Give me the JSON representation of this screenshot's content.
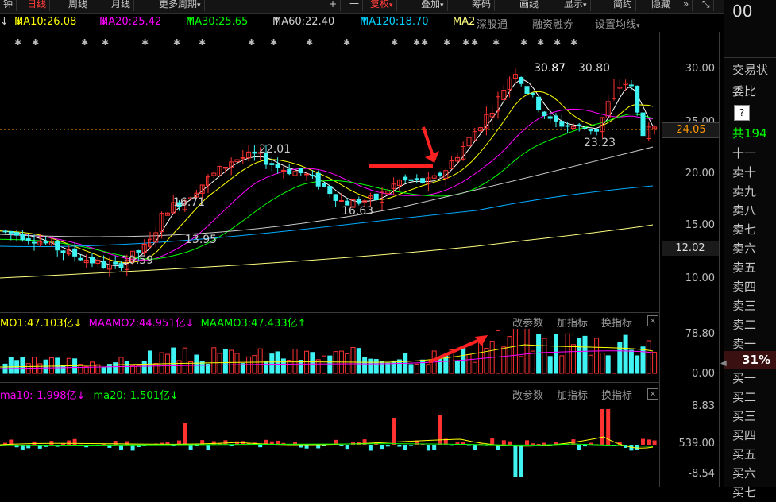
{
  "tabs": [
    {
      "label": "钟",
      "active": false
    },
    {
      "label": "日线",
      "active": true
    },
    {
      "label": "周线",
      "active": false
    },
    {
      "label": "月线",
      "active": false
    },
    {
      "label": "更多周期",
      "active": false,
      "dropdown": true
    }
  ],
  "toolbar": {
    "plus": "+",
    "minus": "一",
    "fuquan": "复权",
    "diejia": "叠加",
    "choumа": "筹码",
    "huaxian": "画线",
    "xianshi": "显示",
    "jianjie": "简约",
    "yincang": "隐藏",
    "more": "»",
    "expand": "⤡"
  },
  "ma_legend": {
    "ma10": "MA10:26.08",
    "ma20": "MA20:25.42",
    "ma30": "MA30:25.65",
    "ma60": "MA60:22.40",
    "ma120": "MA120:18.70",
    "ma2": "MA2",
    "ma10_arrow": "↓",
    "ma20_arrow": "↓",
    "ma30_arrow": "↑",
    "ma60_arrow": "↑",
    "ma120_arrow": "↑",
    "first_arrow": "↓"
  },
  "main_menu": {
    "shengu": "深股通",
    "rongzi": "融资融券",
    "shezhi": "设置均线"
  },
  "colors": {
    "up": "#ff3232",
    "down": "#3ff3f3",
    "ma10": "#ffffff",
    "ma20": "#ffff00",
    "ma30": "#ff00ff",
    "ma60": "#00ff00",
    "ma120": "#aaaaaa",
    "ma250": "#00aaff",
    "long": "#ffff80"
  },
  "price_axis": {
    "labels": [
      "30.00",
      "25.00",
      "20.00",
      "15.00",
      "12.02",
      "10.00"
    ],
    "current": "24.05"
  },
  "annotations": {
    "high1": "30.87",
    "high2": "30.80",
    "low1": "23.23",
    "p22": "22.01",
    "p1663": "16.63",
    "p167": "16.71",
    "p1395": "13.95",
    "p1059": "10.59"
  },
  "panel2": {
    "legend1": "MO1:47.103亿",
    "legend2": "MAAMO2:44.951亿",
    "legend3": "MAAMO3:47.433亿",
    "legend1_arrow": "↓",
    "legend2_arrow": "↓",
    "legend3_arrow": "↑",
    "menu": {
      "gai": "改参数",
      "jia": "加指标",
      "huan": "换指标"
    },
    "axis": [
      "78.80",
      "0.00"
    ],
    "close": "×"
  },
  "panel3": {
    "legend1": "ma10:-1.998亿",
    "legend2": "ma20:-1.501亿",
    "legend1_arrow": "↓",
    "legend2_arrow": "↓",
    "menu": {
      "gai": "改参数",
      "jia": "加指标",
      "huan": "换指标"
    },
    "axis": [
      "8.83",
      "539.00",
      "-8.54"
    ],
    "close": "×"
  },
  "side_panel": {
    "top": "00",
    "jiaoyi": "交易状",
    "weibi": "委比",
    "help": "?",
    "total": "共194",
    "rows": [
      "十一",
      "卖十",
      "卖九",
      "卖八",
      "卖七",
      "卖六",
      "卖五",
      "卖四",
      "卖三",
      "卖二",
      "卖一"
    ],
    "pct": "31%",
    "buy_rows": [
      "买一",
      "买二",
      "买三",
      "买四",
      "买五",
      "买六",
      "买七"
    ]
  }
}
